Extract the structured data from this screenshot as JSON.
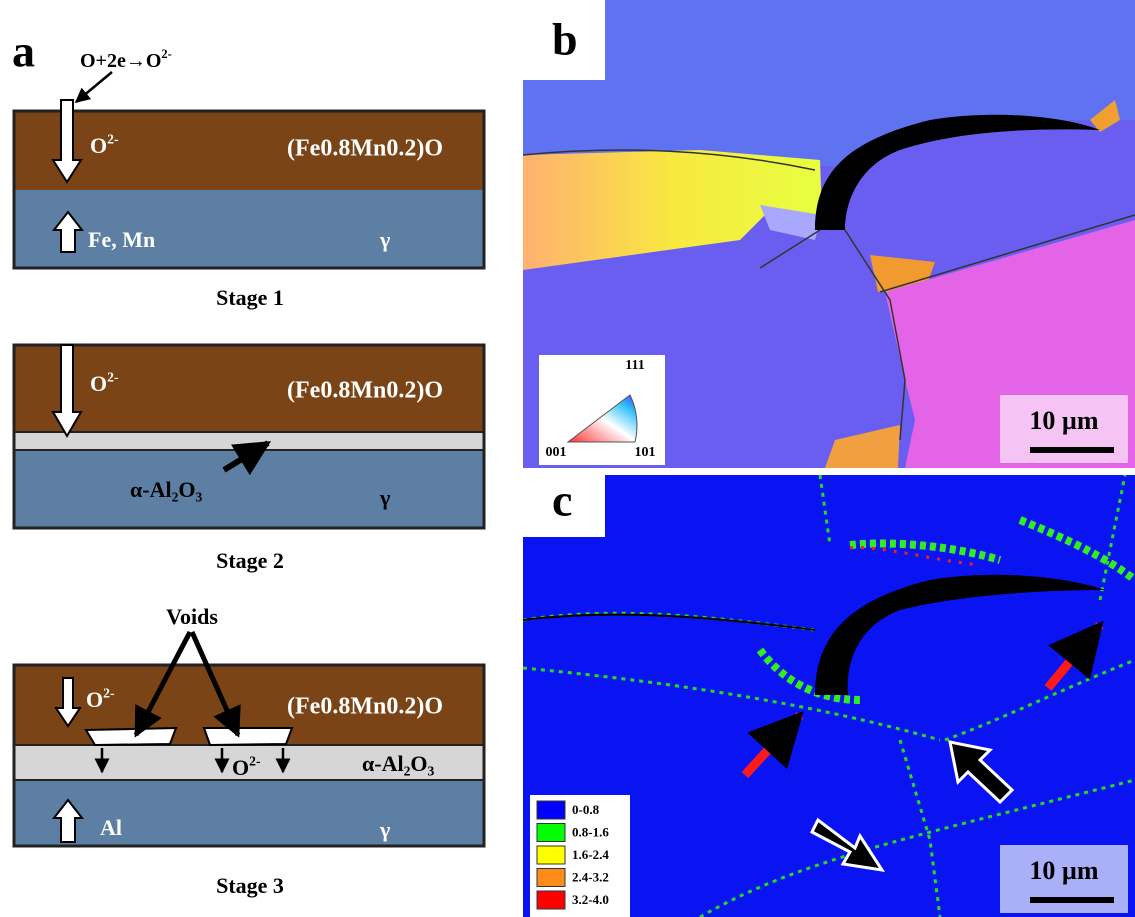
{
  "panel_a": {
    "label": "a",
    "reaction": [
      {
        "text": "O+2e→O"
      },
      {
        "sup": "2-"
      }
    ],
    "stages": [
      {
        "name": "Stage 1",
        "oxide": "(Fe0.8Mn0.2)O",
        "ion": [
          {
            "text": "O"
          },
          {
            "sup": "2-"
          }
        ],
        "diffusing": "Fe, Mn",
        "matrix": "γ"
      },
      {
        "name": "Stage 2",
        "oxide": "(Fe0.8Mn0.2)O",
        "ion": [
          {
            "text": "O"
          },
          {
            "sup": "2-"
          }
        ],
        "scale": [
          {
            "text": "α-Al"
          },
          {
            "sub": "2"
          },
          {
            "text": "O"
          },
          {
            "sub": "3"
          }
        ],
        "matrix": "γ"
      },
      {
        "name": "Stage 3",
        "voids": "Voids",
        "oxide": "(Fe0.8Mn0.2)O",
        "ion": [
          {
            "text": "O"
          },
          {
            "sup": "2-"
          }
        ],
        "ion_in_scale": [
          {
            "text": "O"
          },
          {
            "sup": "2-"
          }
        ],
        "scale": [
          {
            "text": "α-Al"
          },
          {
            "sub": "2"
          },
          {
            "text": "O"
          },
          {
            "sub": "3"
          }
        ],
        "diffusing": "Al",
        "matrix": "γ"
      }
    ]
  },
  "panel_b": {
    "label": "b",
    "ipf_key": [
      "111",
      "001",
      "101"
    ],
    "scale_bar": "10 µm"
  },
  "panel_c": {
    "label": "c",
    "scale_bar": "10 µm",
    "legend": [
      {
        "range": "0-0.8",
        "color": "#0000ff"
      },
      {
        "range": "0.8-1.6",
        "color": "#00ff00"
      },
      {
        "range": "1.6-2.4",
        "color": "#ffff00"
      },
      {
        "range": "2.4-3.2",
        "color": "#ff8c1a"
      },
      {
        "range": "3.2-4.0",
        "color": "#ff0000"
      }
    ]
  }
}
